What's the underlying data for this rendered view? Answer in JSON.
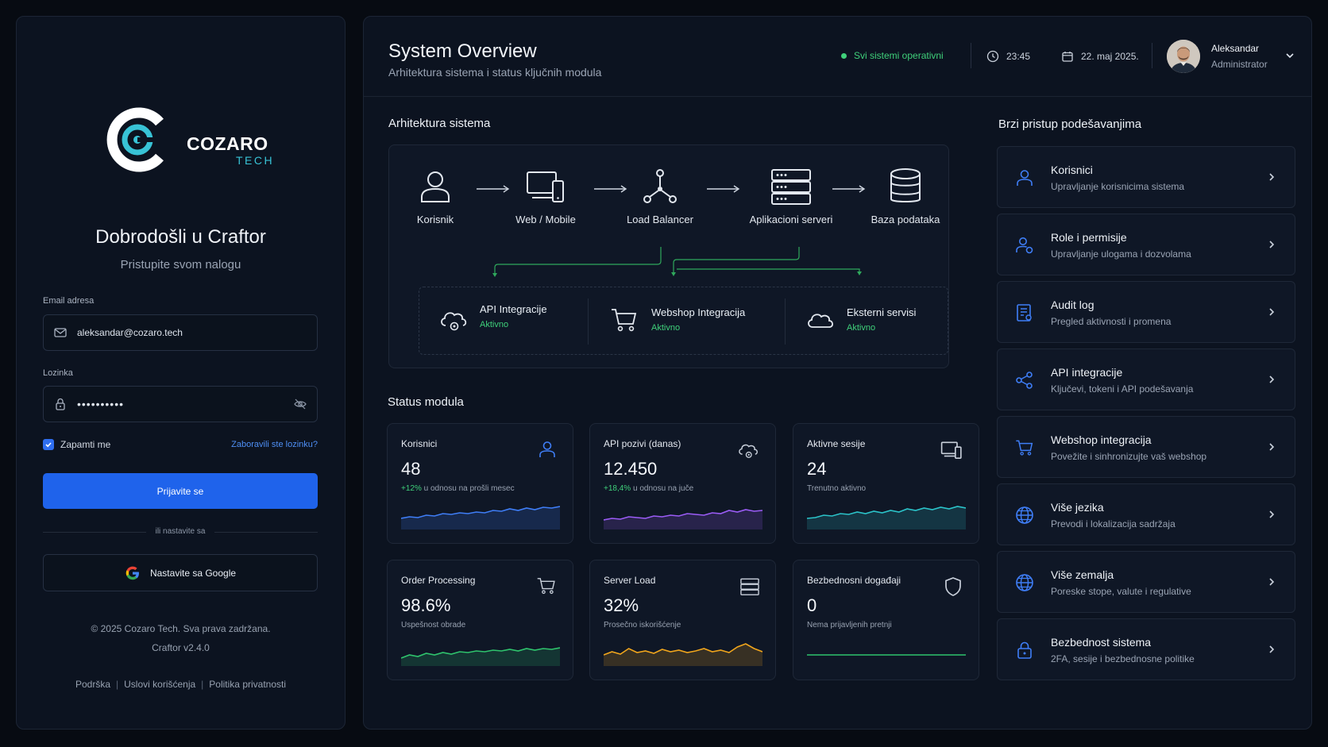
{
  "brand": {
    "name_primary": "COZARO",
    "name_secondary": "TECH",
    "accent": "#38c3d6"
  },
  "login": {
    "welcome_title": "Dobrodošli u Craftor",
    "welcome_subtitle": "Pristupite svom nalogu",
    "email_label": "Email adresa",
    "email_value": "aleksandar@cozaro.tech",
    "password_label": "Lozinka",
    "password_value": "••••••••••",
    "remember_label": "Zapamti me",
    "remember_checked": true,
    "forgot_link": "Zaboravili ste lozinku?",
    "submit_label": "Prijavite se",
    "divider_text": "ili nastavite sa",
    "google_label": "Nastavite sa Google",
    "copyright": "© 2025 Cozaro Tech. Sva prava zadržana.",
    "version": "Craftor v2.4.0",
    "footer_links": [
      "Podrška",
      "Uslovi korišćenja",
      "Politika privatnosti"
    ],
    "primary_color": "#1f63eb"
  },
  "header": {
    "title": "System Overview",
    "subtitle": "Arhitektura sistema i status ključnih modula",
    "status_text": "Svi sistemi operativni",
    "status_color": "#3fd07a",
    "time": "23:45",
    "date": "22. maj 2025.",
    "user_name": "Aleksandar",
    "user_role": "Administrator"
  },
  "architecture": {
    "title": "Arhitektura sistema",
    "nodes": [
      {
        "label": "Korisnik",
        "icon": "user-icon"
      },
      {
        "label": "Web / Mobile",
        "icon": "devices-icon"
      },
      {
        "label": "Load Balancer",
        "icon": "load-balancer-icon"
      },
      {
        "label": "Aplikacioni serveri",
        "icon": "server-icon"
      },
      {
        "label": "Baza podataka",
        "icon": "database-icon"
      }
    ],
    "integrations": [
      {
        "title": "API Integracije",
        "status": "Aktivno",
        "icon": "cloud-gear-icon"
      },
      {
        "title": "Webshop Integracija",
        "status": "Aktivno",
        "icon": "cart-icon"
      },
      {
        "title": "Eksterni servisi",
        "status": "Aktivno",
        "icon": "cloud-icon"
      }
    ]
  },
  "modules": {
    "title": "Status modula",
    "cards": [
      {
        "title": "Korisnici",
        "value": "48",
        "delta": "+12%",
        "sub": " u odnosu na prošli mesec",
        "icon": "user-icon",
        "color": "#3f7ef7"
      },
      {
        "title": "API pozivi (danas)",
        "value": "12.450",
        "delta": "+18,4%",
        "sub": " u odnosu na juče",
        "icon": "cloud-gear-icon",
        "color": "#9b5cf6"
      },
      {
        "title": "Aktivne sesije",
        "value": "24",
        "delta": "",
        "sub": "Trenutno aktivno",
        "icon": "devices-icon",
        "color": "#2bc3c9"
      },
      {
        "title": "Order Processing",
        "value": "98.6%",
        "delta": "",
        "sub": "Uspešnost obrade",
        "icon": "cart-icon",
        "color": "#2fc46d"
      },
      {
        "title": "Server Load",
        "value": "32%",
        "delta": "",
        "sub": "Prosečno iskorišćenje",
        "icon": "server-icon",
        "color": "#f0a51c"
      },
      {
        "title": "Bezbednosni događaji",
        "value": "0",
        "delta": "",
        "sub": "Nema prijavljenih pretnji",
        "icon": "shield-icon",
        "color": "#2fc46d"
      }
    ]
  },
  "quick_access": {
    "title": "Brzi pristup podešavanjima",
    "items": [
      {
        "title": "Korisnici",
        "sub": "Upravljanje korisnicima sistema",
        "icon": "user-icon"
      },
      {
        "title": "Role i permisije",
        "sub": "Upravljanje ulogama i dozvolama",
        "icon": "users-role-icon"
      },
      {
        "title": "Audit log",
        "sub": "Pregled aktivnosti i promena",
        "icon": "document-icon"
      },
      {
        "title": "API integracije",
        "sub": "Ključevi, tokeni i API podešavanja",
        "icon": "share-nodes-icon"
      },
      {
        "title": "Webshop integracija",
        "sub": "Povežite i sinhronizujte vaš webshop",
        "icon": "cart-icon"
      },
      {
        "title": "Više jezika",
        "sub": "Prevodi i lokalizacija sadržaja",
        "icon": "globe-icon"
      },
      {
        "title": "Više zemalja",
        "sub": "Poreske stope, valute i regulative",
        "icon": "globe-icon"
      },
      {
        "title": "Bezbednost sistema",
        "sub": "2FA, sesije i bezbednosne politike",
        "icon": "lock-icon"
      }
    ]
  }
}
